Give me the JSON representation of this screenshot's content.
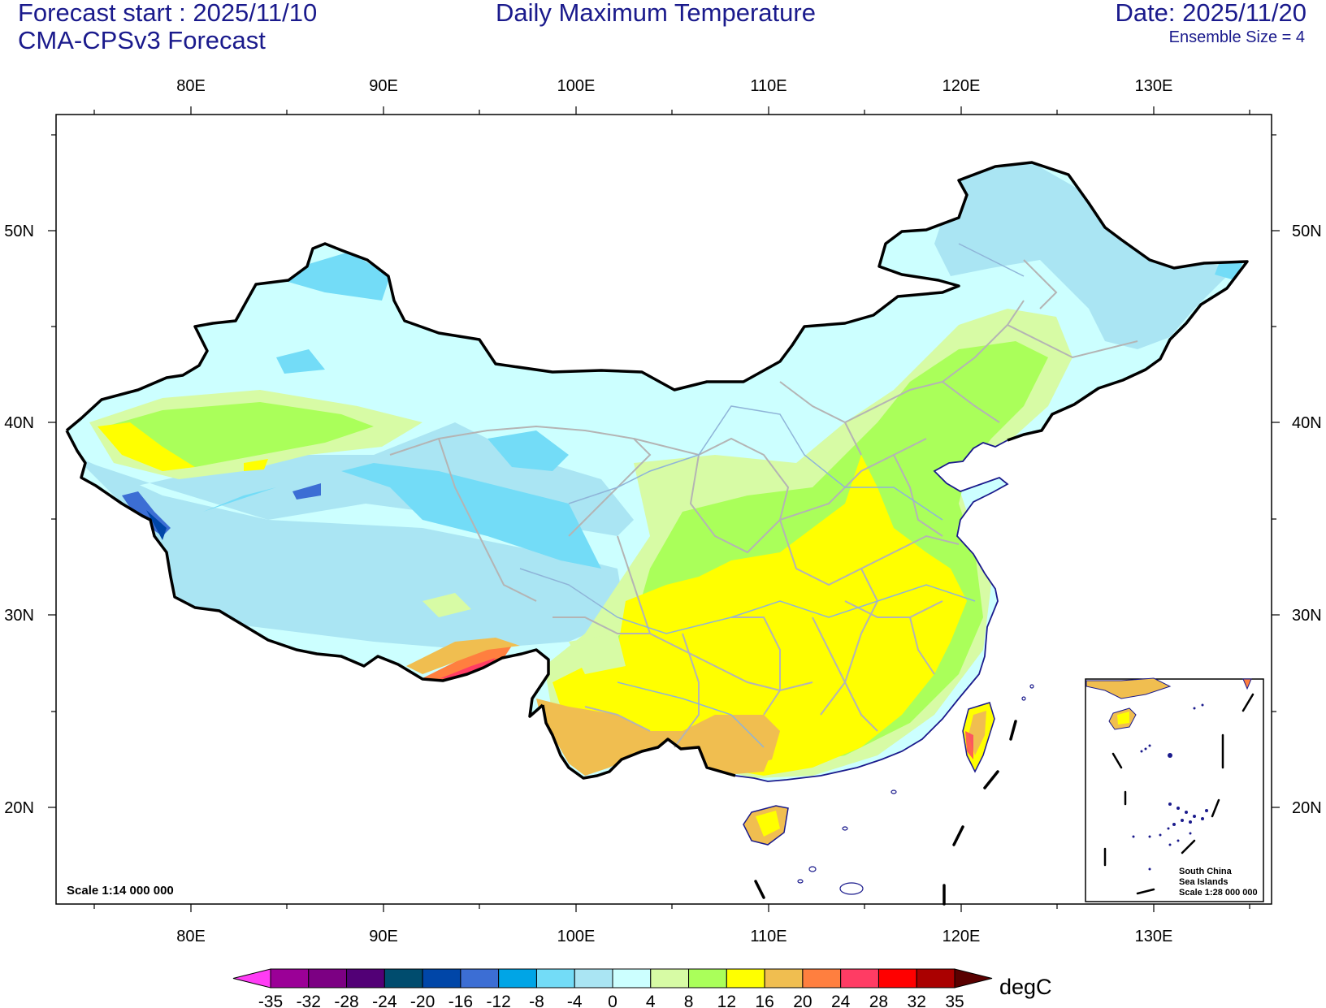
{
  "header": {
    "forecast_start": "Forecast start : 2025/11/10",
    "model": "CMA-CPSv3 Forecast",
    "title": "Daily Maximum Temperature",
    "date": "Date: 2025/11/20",
    "ensemble": "Ensemble Size = 4"
  },
  "map": {
    "lon_ticks": [
      "80E",
      "90E",
      "100E",
      "110E",
      "120E",
      "130E"
    ],
    "lat_ticks": [
      "50N",
      "40N",
      "30N",
      "20N"
    ],
    "scale": "Scale 1:14 000 000",
    "inset": {
      "line1": "South China",
      "line2": "Sea Islands",
      "line3": "Scale 1:28 000 000"
    }
  },
  "colorbar": {
    "unit": "degC",
    "labels": [
      "-35",
      "-32",
      "-28",
      "-24",
      "-20",
      "-16",
      "-12",
      "-8",
      "-4",
      "0",
      "4",
      "8",
      "12",
      "16",
      "20",
      "24",
      "28",
      "32",
      "35"
    ],
    "colors": [
      "#ff3cf5",
      "#9b0097",
      "#7c0083",
      "#520076",
      "#004c6e",
      "#0046a8",
      "#3c6ed4",
      "#00a5e6",
      "#73dcf7",
      "#aae5f3",
      "#ccffff",
      "#d7fba5",
      "#aaff5a",
      "#ffff00",
      "#f0be50",
      "#ff7f3f",
      "#ff3c64",
      "#ff0000",
      "#aa0000",
      "#5a0000"
    ]
  },
  "legend_colors": {
    "border": "#000000",
    "province": "#b4b4b4",
    "title_text": "#1a1a8c"
  }
}
